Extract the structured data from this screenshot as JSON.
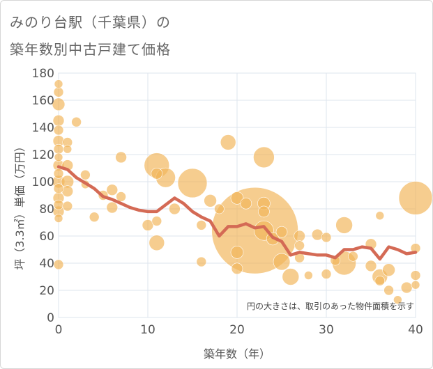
{
  "title_lines": [
    "みのり台駅（千葉県）の",
    "築年数別中古戸建て価格"
  ],
  "chart_data": {
    "type": "scatter",
    "xlabel": "築年数（年）",
    "ylabel": "坪（3.3㎡）単価（万円）",
    "xlim": [
      0,
      40
    ],
    "ylim": [
      0,
      180
    ],
    "xticks": [
      0,
      10,
      20,
      30,
      40
    ],
    "yticks": [
      0,
      20,
      40,
      60,
      80,
      100,
      120,
      140,
      160,
      180
    ],
    "grid": true,
    "annotation": "円の大きさは、取引のあった物件面積を示す",
    "colors": {
      "bubble": "#f2b65a",
      "line": "#d46a55",
      "grid": "#dde4ee"
    },
    "bubbles": [
      {
        "x": 0,
        "y": 172,
        "s": 6
      },
      {
        "x": 0,
        "y": 166,
        "s": 7
      },
      {
        "x": 0,
        "y": 157,
        "s": 9
      },
      {
        "x": 0,
        "y": 145,
        "s": 8
      },
      {
        "x": 0,
        "y": 138,
        "s": 7
      },
      {
        "x": 0,
        "y": 130,
        "s": 8
      },
      {
        "x": 0,
        "y": 124,
        "s": 7
      },
      {
        "x": 0,
        "y": 118,
        "s": 6
      },
      {
        "x": 0,
        "y": 112,
        "s": 8
      },
      {
        "x": 0,
        "y": 106,
        "s": 7
      },
      {
        "x": 0,
        "y": 100,
        "s": 9
      },
      {
        "x": 0,
        "y": 95,
        "s": 7
      },
      {
        "x": 0,
        "y": 88,
        "s": 8
      },
      {
        "x": 0,
        "y": 83,
        "s": 7
      },
      {
        "x": 0,
        "y": 78,
        "s": 8
      },
      {
        "x": 0,
        "y": 73,
        "s": 6
      },
      {
        "x": 0,
        "y": 39,
        "s": 7
      },
      {
        "x": 1,
        "y": 129,
        "s": 7
      },
      {
        "x": 1,
        "y": 124,
        "s": 6
      },
      {
        "x": 1,
        "y": 112,
        "s": 8
      },
      {
        "x": 1,
        "y": 100,
        "s": 9
      },
      {
        "x": 1,
        "y": 93,
        "s": 8
      },
      {
        "x": 1,
        "y": 82,
        "s": 7
      },
      {
        "x": 2,
        "y": 144,
        "s": 7
      },
      {
        "x": 3,
        "y": 105,
        "s": 7
      },
      {
        "x": 3,
        "y": 98,
        "s": 6
      },
      {
        "x": 4,
        "y": 74,
        "s": 7
      },
      {
        "x": 5,
        "y": 90,
        "s": 7
      },
      {
        "x": 6,
        "y": 94,
        "s": 8
      },
      {
        "x": 6,
        "y": 81,
        "s": 8
      },
      {
        "x": 7,
        "y": 118,
        "s": 8
      },
      {
        "x": 7,
        "y": 89,
        "s": 7
      },
      {
        "x": 10,
        "y": 68,
        "s": 8
      },
      {
        "x": 11,
        "y": 112,
        "s": 18
      },
      {
        "x": 11,
        "y": 106,
        "s": 8
      },
      {
        "x": 11,
        "y": 71,
        "s": 7
      },
      {
        "x": 11,
        "y": 55,
        "s": 11
      },
      {
        "x": 12,
        "y": 103,
        "s": 14
      },
      {
        "x": 13,
        "y": 80,
        "s": 8
      },
      {
        "x": 15,
        "y": 99,
        "s": 21
      },
      {
        "x": 16,
        "y": 68,
        "s": 7
      },
      {
        "x": 16,
        "y": 41,
        "s": 7
      },
      {
        "x": 17,
        "y": 86,
        "s": 9
      },
      {
        "x": 18,
        "y": 80,
        "s": 7
      },
      {
        "x": 19,
        "y": 129,
        "s": 11
      },
      {
        "x": 20,
        "y": 88,
        "s": 9
      },
      {
        "x": 21,
        "y": 84,
        "s": 8
      },
      {
        "x": 22,
        "y": 64,
        "s": 62
      },
      {
        "x": 20,
        "y": 48,
        "s": 9
      },
      {
        "x": 20,
        "y": 36,
        "s": 8
      },
      {
        "x": 23,
        "y": 118,
        "s": 15
      },
      {
        "x": 23,
        "y": 84,
        "s": 9
      },
      {
        "x": 23,
        "y": 78,
        "s": 8
      },
      {
        "x": 23,
        "y": 64,
        "s": 14
      },
      {
        "x": 24,
        "y": 58,
        "s": 9
      },
      {
        "x": 25,
        "y": 63,
        "s": 8
      },
      {
        "x": 25,
        "y": 41,
        "s": 12
      },
      {
        "x": 26,
        "y": 30,
        "s": 12
      },
      {
        "x": 27,
        "y": 60,
        "s": 8
      },
      {
        "x": 27,
        "y": 53,
        "s": 7
      },
      {
        "x": 27,
        "y": 44,
        "s": 7
      },
      {
        "x": 28,
        "y": 31,
        "s": 6
      },
      {
        "x": 29,
        "y": 61,
        "s": 8
      },
      {
        "x": 30,
        "y": 59,
        "s": 7
      },
      {
        "x": 30,
        "y": 32,
        "s": 7
      },
      {
        "x": 31,
        "y": 42,
        "s": 7
      },
      {
        "x": 32,
        "y": 68,
        "s": 12
      },
      {
        "x": 32,
        "y": 40,
        "s": 17
      },
      {
        "x": 33,
        "y": 45,
        "s": 7
      },
      {
        "x": 35,
        "y": 54,
        "s": 8
      },
      {
        "x": 35,
        "y": 38,
        "s": 8
      },
      {
        "x": 36,
        "y": 75,
        "s": 6
      },
      {
        "x": 36,
        "y": 30,
        "s": 11
      },
      {
        "x": 36,
        "y": 27,
        "s": 7
      },
      {
        "x": 37,
        "y": 35,
        "s": 9
      },
      {
        "x": 37,
        "y": 20,
        "s": 7
      },
      {
        "x": 38,
        "y": 13,
        "s": 6
      },
      {
        "x": 39,
        "y": 22,
        "s": 8
      },
      {
        "x": 40,
        "y": 88,
        "s": 24
      },
      {
        "x": 40,
        "y": 51,
        "s": 7
      },
      {
        "x": 40,
        "y": 31,
        "s": 7
      },
      {
        "x": 40,
        "y": 24,
        "s": 6
      }
    ],
    "series": [
      {
        "type": "line",
        "x": [
          0,
          1,
          2,
          3,
          4,
          5,
          6,
          7,
          8,
          9,
          10,
          11,
          12,
          13,
          14,
          15,
          16,
          17,
          18,
          19,
          20,
          21,
          22,
          23,
          24,
          25,
          26,
          27,
          28,
          29,
          30,
          31,
          32,
          33,
          34,
          35,
          36,
          37,
          38,
          39,
          40
        ],
        "y": [
          111,
          109,
          103,
          99,
          95,
          89,
          87,
          84,
          81,
          79,
          78,
          78,
          83,
          88,
          84,
          78,
          74,
          71,
          60,
          67,
          67,
          69,
          66,
          67,
          59,
          56,
          46,
          48,
          47,
          46,
          46,
          44,
          50,
          50,
          52,
          51,
          43,
          52,
          50,
          47,
          48
        ]
      }
    ]
  }
}
